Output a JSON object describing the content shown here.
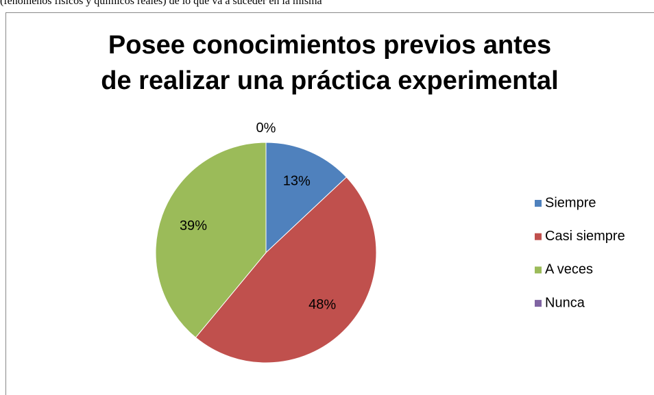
{
  "text_above": "(fenómenos físicos y químicos reales) de lo que va a suceder en la misma",
  "chart_data": {
    "type": "pie",
    "title": "Posee conocimientos previos antes\nde realizar una práctica experimental",
    "categories": [
      "Siempre",
      "Casi siempre",
      "A veces",
      "Nunca"
    ],
    "values": [
      13,
      48,
      39,
      0
    ],
    "colors": [
      "#4f81bd",
      "#c0504d",
      "#9bbb59",
      "#8064a2"
    ],
    "legend": "right"
  }
}
